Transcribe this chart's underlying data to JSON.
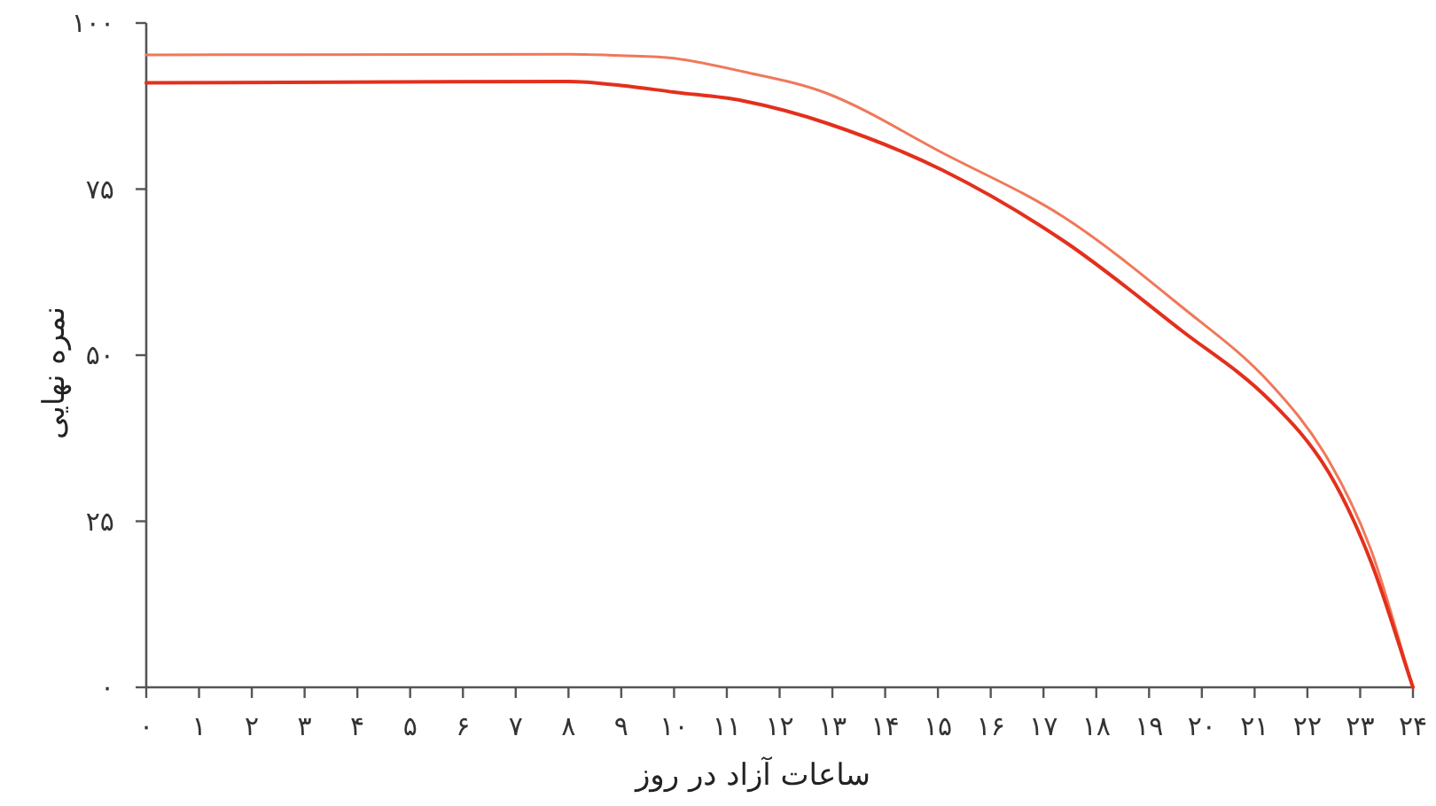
{
  "chart_data": {
    "type": "line",
    "xlabel": "ساعات آزاد در روز",
    "ylabel": "نمره نهایی",
    "x": [
      0,
      8,
      9,
      10,
      11.3,
      12.9,
      15.1,
      17.4,
      19.6,
      21.3,
      22.4,
      23.2,
      24
    ],
    "series": [
      {
        "color": "#f0785a",
        "values": [
          95.2,
          95.3,
          95.1,
          94.7,
          92.7,
          89.4,
          80.4,
          70.7,
          57.4,
          45.7,
          34.2,
          20.8,
          0
        ]
      },
      {
        "color": "#e3301c",
        "values": [
          91,
          91.2,
          90.6,
          89.6,
          88.3,
          84.9,
          77.8,
          67.1,
          53.8,
          43.1,
          32.4,
          19,
          0
        ]
      }
    ],
    "xlim": [
      0,
      24
    ],
    "ylim": [
      0,
      100
    ],
    "xticks": [
      {
        "value": 0,
        "label": "۰"
      },
      {
        "value": 1,
        "label": "۱"
      },
      {
        "value": 2,
        "label": "۲"
      },
      {
        "value": 3,
        "label": "۳"
      },
      {
        "value": 4,
        "label": "۴"
      },
      {
        "value": 5,
        "label": "۵"
      },
      {
        "value": 6,
        "label": "۶"
      },
      {
        "value": 7,
        "label": "۷"
      },
      {
        "value": 8,
        "label": "۸"
      },
      {
        "value": 9,
        "label": "۹"
      },
      {
        "value": 10,
        "label": "۱۰"
      },
      {
        "value": 11,
        "label": "۱۱"
      },
      {
        "value": 12,
        "label": "۱۲"
      },
      {
        "value": 13,
        "label": "۱۳"
      },
      {
        "value": 14,
        "label": "۱۴"
      },
      {
        "value": 15,
        "label": "۱۵"
      },
      {
        "value": 16,
        "label": "۱۶"
      },
      {
        "value": 17,
        "label": "۱۷"
      },
      {
        "value": 18,
        "label": "۱۸"
      },
      {
        "value": 19,
        "label": "۱۹"
      },
      {
        "value": 20,
        "label": "۲۰"
      },
      {
        "value": 21,
        "label": "۲۱"
      },
      {
        "value": 22,
        "label": "۲۲"
      },
      {
        "value": 23,
        "label": "۲۳"
      },
      {
        "value": 24,
        "label": "۲۴"
      }
    ],
    "yticks": [
      {
        "value": 0,
        "label": "۰"
      },
      {
        "value": 25,
        "label": "۲۵"
      },
      {
        "value": 50,
        "label": "۵۰"
      },
      {
        "value": 75,
        "label": "۷۵"
      },
      {
        "value": 100,
        "label": "۱۰۰"
      }
    ]
  }
}
